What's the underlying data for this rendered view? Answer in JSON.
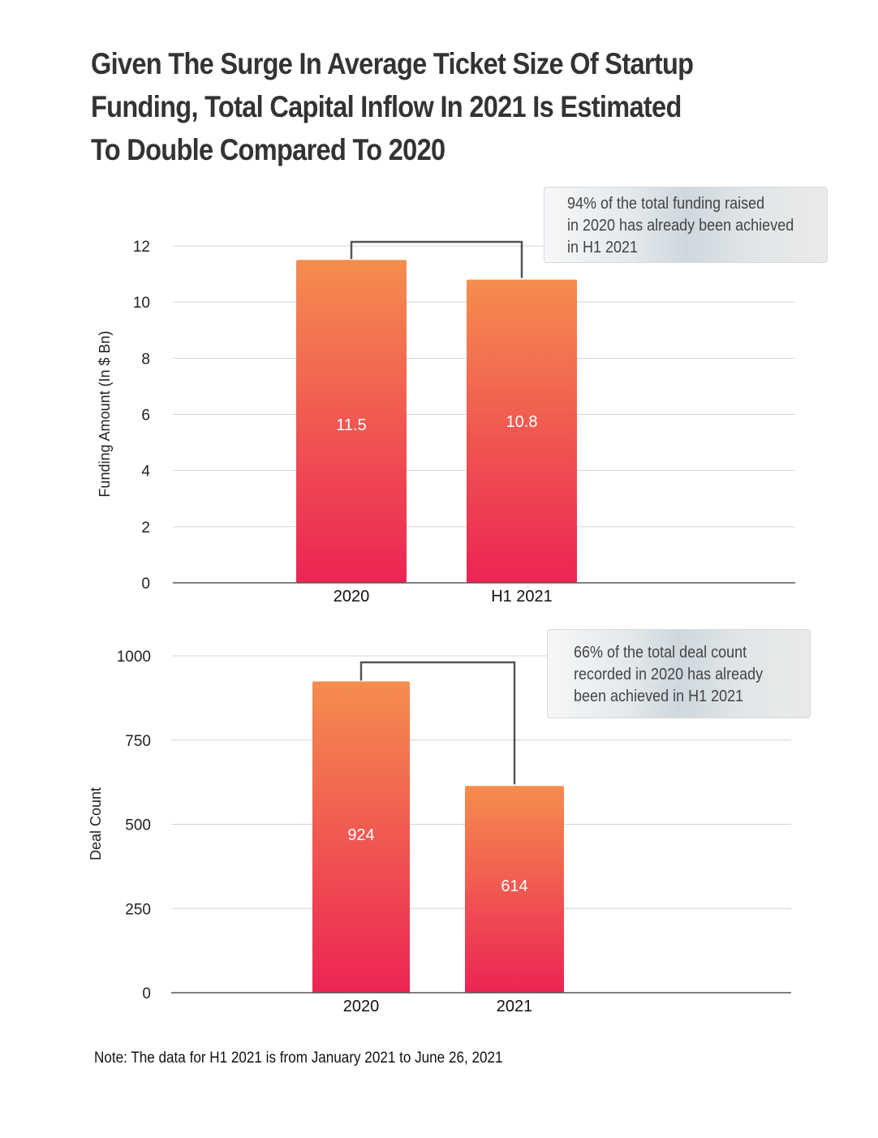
{
  "title_lines": [
    "Given The Surge In Average Ticket Size Of Startup",
    "Funding, Total Capital Inflow In 2021 Is Estimated",
    "To Double Compared To 2020"
  ],
  "note": "Note: The data for H1 2021 is from January 2021 to June 26, 2021",
  "colors": {
    "bar_top": "#f58d4e",
    "bar_bottom": "#ec2454",
    "gridline": "#d4d4d4",
    "axis": "#555555",
    "bracket": "#555555"
  },
  "chart_data": [
    {
      "type": "bar",
      "title": "",
      "xlabel": "",
      "ylabel": "Funding Amount (In $ Bn)",
      "categories": [
        "2020",
        "H1 2021"
      ],
      "values": [
        11.5,
        10.8
      ],
      "value_labels": [
        "11.5",
        "10.8"
      ],
      "ylim": [
        0,
        12
      ],
      "yticks": [
        0,
        2,
        4,
        6,
        8,
        10,
        12
      ],
      "ytick_labels": [
        "0",
        "2",
        "4",
        "6",
        "8",
        "10",
        "12"
      ],
      "grid": true,
      "annotation_lines": [
        "94% of the total funding raised",
        "in 2020 has already been achieved",
        "in H1 2021"
      ]
    },
    {
      "type": "bar",
      "title": "",
      "xlabel": "",
      "ylabel": "Deal Count",
      "categories": [
        "2020",
        "2021"
      ],
      "values": [
        924,
        614
      ],
      "value_labels": [
        "924",
        "614"
      ],
      "ylim": [
        0,
        1000
      ],
      "yticks": [
        0,
        250,
        500,
        750,
        1000
      ],
      "ytick_labels": [
        "0",
        "250",
        "500",
        "750",
        "1000"
      ],
      "grid": true,
      "annotation_lines": [
        "66% of the total deal count",
        "recorded in 2020 has already",
        "been achieved in H1 2021"
      ]
    }
  ]
}
